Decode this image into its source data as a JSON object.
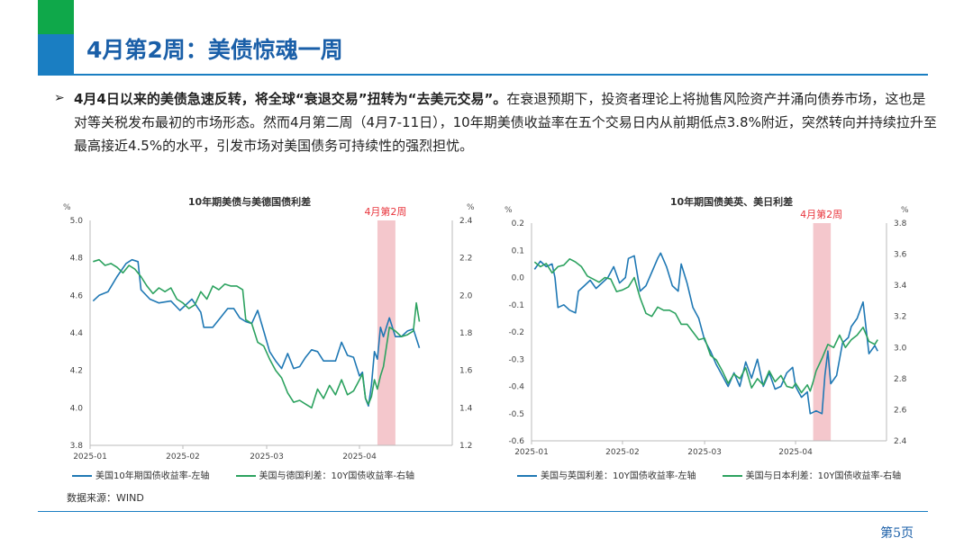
{
  "slide": {
    "title": "4月第2周：美债惊魂一周",
    "bullet_lead": "4月4日以来的美债急速反转，将全球“衰退交易”扭转为“去美元交易”。",
    "bullet_rest": "在衰退预期下，投资者理论上将抛售风险资产并涌向债券市场，这也是对等关税发布最初的市场形态。然而4月第二周（4月7-11日），10年期美债收益率在五个交易日内从前期低点3.8%附近，突然转向并持续拉升至最高接近4.5%的水平，引发市场对美国债务可持续性的强烈担忧。",
    "source": "数据来源：WIND",
    "page": "第5页",
    "colors": {
      "blue": "#1f78b4",
      "green": "#2ca25f",
      "highlight": "#f4c7cc",
      "highlight_text": "#e8343c"
    }
  },
  "chart_data": [
    {
      "type": "line",
      "title": "10年期美债与美德国债利差",
      "highlight_label": "4月第2周",
      "unit_left": "%",
      "unit_right": "%",
      "ylim_left": [
        3.8,
        5.0
      ],
      "ylim_right": [
        1.2,
        2.4
      ],
      "yticks_left": [
        "5.0",
        "4.8",
        "4.6",
        "4.4",
        "4.2",
        "4.0",
        "3.8"
      ],
      "yticks_right": [
        "2.4",
        "2.2",
        "2.0",
        "1.8",
        "1.6",
        "1.4",
        "1.2"
      ],
      "xticks": [
        "2025-01",
        "2025-02",
        "2025-03",
        "2025-04"
      ],
      "highlight_range_days": [
        96,
        102
      ],
      "series": [
        {
          "name": "美国10年期国债收益率-左轴",
          "axis": "left",
          "color": "#1f78b4",
          "points": [
            [
              1,
              4.57
            ],
            [
              3,
              4.6
            ],
            [
              6,
              4.62
            ],
            [
              9,
              4.7
            ],
            [
              12,
              4.77
            ],
            [
              14,
              4.79
            ],
            [
              16,
              4.78
            ],
            [
              17,
              4.63
            ],
            [
              20,
              4.58
            ],
            [
              23,
              4.56
            ],
            [
              27,
              4.57
            ],
            [
              30,
              4.52
            ],
            [
              32,
              4.55
            ],
            [
              34,
              4.58
            ],
            [
              37,
              4.51
            ],
            [
              38,
              4.43
            ],
            [
              41,
              4.43
            ],
            [
              44,
              4.49
            ],
            [
              46,
              4.53
            ],
            [
              48,
              4.53
            ],
            [
              50,
              4.48
            ],
            [
              52,
              4.46
            ],
            [
              54,
              4.45
            ],
            [
              56,
              4.52
            ],
            [
              58,
              4.41
            ],
            [
              60,
              4.3
            ],
            [
              62,
              4.25
            ],
            [
              64,
              4.21
            ],
            [
              66,
              4.29
            ],
            [
              68,
              4.21
            ],
            [
              70,
              4.22
            ],
            [
              72,
              4.27
            ],
            [
              74,
              4.31
            ],
            [
              76,
              4.3
            ],
            [
              78,
              4.25
            ],
            [
              80,
              4.25
            ],
            [
              82,
              4.25
            ],
            [
              84,
              4.35
            ],
            [
              86,
              4.28
            ],
            [
              88,
              4.27
            ],
            [
              90,
              4.17
            ],
            [
              91,
              4.19
            ],
            [
              92,
              4.05
            ],
            [
              93,
              4.01
            ],
            [
              94,
              4.12
            ],
            [
              95,
              4.3
            ],
            [
              96,
              4.26
            ],
            [
              97,
              4.43
            ],
            [
              98,
              4.38
            ],
            [
              100,
              4.48
            ],
            [
              102,
              4.38
            ],
            [
              104,
              4.38
            ],
            [
              106,
              4.41
            ],
            [
              108,
              4.42
            ],
            [
              110,
              4.32
            ]
          ]
        },
        {
          "name": "美国与德国利差：10Y国债收益率-右轴",
          "axis": "right",
          "color": "#2ca25f",
          "points": [
            [
              1,
              2.18
            ],
            [
              3,
              2.19
            ],
            [
              5,
              2.16
            ],
            [
              7,
              2.17
            ],
            [
              9,
              2.15
            ],
            [
              11,
              2.12
            ],
            [
              13,
              2.16
            ],
            [
              15,
              2.14
            ],
            [
              17,
              2.1
            ],
            [
              19,
              2.05
            ],
            [
              21,
              2.01
            ],
            [
              23,
              2.04
            ],
            [
              25,
              2.02
            ],
            [
              27,
              2.04
            ],
            [
              29,
              1.98
            ],
            [
              31,
              1.96
            ],
            [
              33,
              1.93
            ],
            [
              35,
              1.95
            ],
            [
              37,
              2.02
            ],
            [
              39,
              1.98
            ],
            [
              41,
              2.05
            ],
            [
              43,
              2.03
            ],
            [
              45,
              2.06
            ],
            [
              47,
              2.05
            ],
            [
              49,
              2.05
            ],
            [
              51,
              2.03
            ],
            [
              52,
              1.87
            ],
            [
              54,
              1.85
            ],
            [
              56,
              1.75
            ],
            [
              58,
              1.73
            ],
            [
              60,
              1.66
            ],
            [
              62,
              1.6
            ],
            [
              64,
              1.56
            ],
            [
              66,
              1.48
            ],
            [
              68,
              1.43
            ],
            [
              70,
              1.44
            ],
            [
              72,
              1.42
            ],
            [
              74,
              1.4
            ],
            [
              76,
              1.5
            ],
            [
              78,
              1.45
            ],
            [
              80,
              1.52
            ],
            [
              82,
              1.47
            ],
            [
              84,
              1.55
            ],
            [
              86,
              1.47
            ],
            [
              88,
              1.49
            ],
            [
              90,
              1.55
            ],
            [
              91,
              1.58
            ],
            [
              92,
              1.45
            ],
            [
              93,
              1.42
            ],
            [
              94,
              1.46
            ],
            [
              95,
              1.55
            ],
            [
              96,
              1.5
            ],
            [
              97,
              1.57
            ],
            [
              98,
              1.62
            ],
            [
              100,
              1.83
            ],
            [
              102,
              1.81
            ],
            [
              104,
              1.78
            ],
            [
              106,
              1.79
            ],
            [
              108,
              1.81
            ],
            [
              109,
              1.96
            ],
            [
              110,
              1.86
            ]
          ]
        }
      ]
    },
    {
      "type": "line",
      "title": "10年期国债美英、美日利差",
      "highlight_label": "4月第2周",
      "unit_left": "%",
      "unit_right": "%",
      "ylim_left": [
        -0.6,
        0.2
      ],
      "ylim_right": [
        2.4,
        3.8
      ],
      "yticks_left": [
        "0.2",
        "0.1",
        "0.0",
        "-0.1",
        "-0.2",
        "-0.3",
        "-0.4",
        "-0.5",
        "-0.6"
      ],
      "yticks_right": [
        "3.8",
        "3.6",
        "3.4",
        "3.2",
        "3.0",
        "2.8",
        "2.6",
        "2.4"
      ],
      "xticks": [
        "2025-01",
        "2025-02",
        "2025-03",
        "2025-04"
      ],
      "highlight_range_days": [
        96,
        102
      ],
      "series": [
        {
          "name": "美国与英国利差：10Y国债收益率-左轴",
          "axis": "left",
          "color": "#1f78b4",
          "points": [
            [
              1,
              0.03
            ],
            [
              3,
              0.06
            ],
            [
              5,
              0.04
            ],
            [
              7,
              0.05
            ],
            [
              8,
              0.0
            ],
            [
              9,
              -0.11
            ],
            [
              11,
              -0.1
            ],
            [
              13,
              -0.12
            ],
            [
              15,
              -0.13
            ],
            [
              16,
              -0.05
            ],
            [
              18,
              -0.03
            ],
            [
              20,
              -0.01
            ],
            [
              22,
              -0.04
            ],
            [
              24,
              -0.02
            ],
            [
              26,
              0.0
            ],
            [
              28,
              0.04
            ],
            [
              30,
              -0.02
            ],
            [
              32,
              0.0
            ],
            [
              33,
              0.07
            ],
            [
              35,
              0.08
            ],
            [
              37,
              -0.05
            ],
            [
              39,
              -0.03
            ],
            [
              41,
              0.02
            ],
            [
              43,
              0.07
            ],
            [
              44,
              0.09
            ],
            [
              46,
              0.04
            ],
            [
              48,
              -0.03
            ],
            [
              50,
              -0.05
            ],
            [
              51,
              0.05
            ],
            [
              53,
              -0.02
            ],
            [
              55,
              -0.11
            ],
            [
              57,
              -0.15
            ],
            [
              59,
              -0.23
            ],
            [
              61,
              -0.27
            ],
            [
              63,
              -0.32
            ],
            [
              65,
              -0.36
            ],
            [
              67,
              -0.4
            ],
            [
              69,
              -0.35
            ],
            [
              71,
              -0.4
            ],
            [
              73,
              -0.31
            ],
            [
              75,
              -0.37
            ],
            [
              77,
              -0.3
            ],
            [
              79,
              -0.4
            ],
            [
              81,
              -0.35
            ],
            [
              83,
              -0.41
            ],
            [
              85,
              -0.4
            ],
            [
              87,
              -0.35
            ],
            [
              89,
              -0.33
            ],
            [
              90,
              -0.4
            ],
            [
              92,
              -0.44
            ],
            [
              94,
              -0.42
            ],
            [
              95,
              -0.5
            ],
            [
              97,
              -0.49
            ],
            [
              99,
              -0.5
            ],
            [
              100,
              -0.36
            ],
            [
              101,
              -0.27
            ],
            [
              102,
              -0.39
            ],
            [
              104,
              -0.36
            ],
            [
              106,
              -0.24
            ],
            [
              108,
              -0.22
            ],
            [
              109,
              -0.18
            ],
            [
              111,
              -0.15
            ],
            [
              113,
              -0.09
            ],
            [
              115,
              -0.28
            ],
            [
              117,
              -0.25
            ],
            [
              118,
              -0.27
            ]
          ]
        },
        {
          "name": "美国与日本利差：10Y国债收益率-右轴",
          "axis": "right",
          "color": "#2ca25f",
          "points": [
            [
              1,
              3.55
            ],
            [
              3,
              3.52
            ],
            [
              5,
              3.54
            ],
            [
              7,
              3.48
            ],
            [
              9,
              3.52
            ],
            [
              11,
              3.53
            ],
            [
              13,
              3.57
            ],
            [
              15,
              3.55
            ],
            [
              17,
              3.52
            ],
            [
              19,
              3.46
            ],
            [
              21,
              3.44
            ],
            [
              23,
              3.42
            ],
            [
              25,
              3.45
            ],
            [
              27,
              3.44
            ],
            [
              29,
              3.36
            ],
            [
              31,
              3.37
            ],
            [
              33,
              3.39
            ],
            [
              35,
              3.45
            ],
            [
              37,
              3.32
            ],
            [
              39,
              3.22
            ],
            [
              41,
              3.2
            ],
            [
              43,
              3.26
            ],
            [
              45,
              3.24
            ],
            [
              47,
              3.24
            ],
            [
              49,
              3.22
            ],
            [
              51,
              3.15
            ],
            [
              53,
              3.15
            ],
            [
              55,
              3.1
            ],
            [
              57,
              3.05
            ],
            [
              59,
              3.06
            ],
            [
              61,
              2.95
            ],
            [
              63,
              2.92
            ],
            [
              65,
              2.85
            ],
            [
              67,
              2.77
            ],
            [
              69,
              2.83
            ],
            [
              71,
              2.8
            ],
            [
              73,
              2.87
            ],
            [
              75,
              2.74
            ],
            [
              77,
              2.8
            ],
            [
              79,
              2.76
            ],
            [
              81,
              2.85
            ],
            [
              83,
              2.78
            ],
            [
              85,
              2.82
            ],
            [
              87,
              2.75
            ],
            [
              89,
              2.74
            ],
            [
              90,
              2.77
            ],
            [
              92,
              2.71
            ],
            [
              94,
              2.76
            ],
            [
              95,
              2.72
            ],
            [
              96,
              2.78
            ],
            [
              97,
              2.85
            ],
            [
              99,
              2.93
            ],
            [
              101,
              3.02
            ],
            [
              103,
              3.0
            ],
            [
              105,
              3.08
            ],
            [
              107,
              3.0
            ],
            [
              109,
              3.05
            ],
            [
              111,
              3.08
            ],
            [
              113,
              3.13
            ],
            [
              115,
              3.04
            ],
            [
              117,
              3.02
            ],
            [
              118,
              3.05
            ]
          ]
        }
      ]
    }
  ]
}
